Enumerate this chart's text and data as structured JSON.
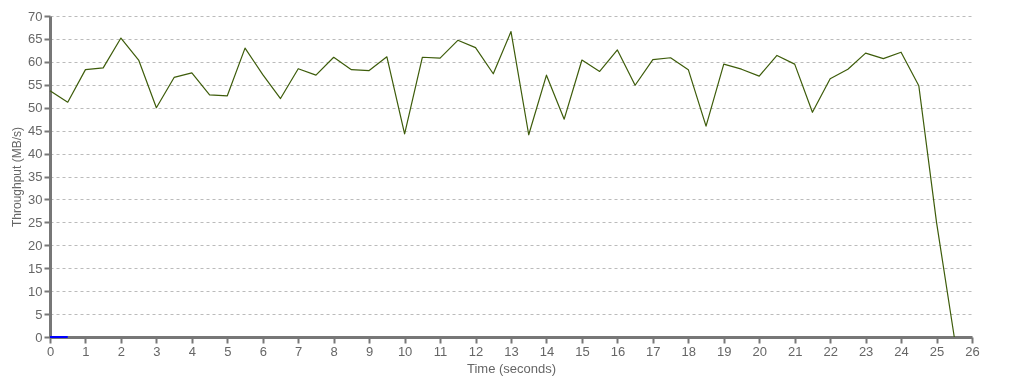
{
  "chart_data": {
    "type": "line",
    "xlabel": "Time (seconds)",
    "ylabel": "Throughput (MB/s)",
    "xlim": [
      0,
      26
    ],
    "xticks": [
      0,
      1,
      2,
      3,
      4,
      5,
      6,
      7,
      8,
      9,
      10,
      11,
      12,
      13,
      14,
      15,
      16,
      17,
      18,
      19,
      20,
      21,
      22,
      23,
      24,
      25,
      26
    ],
    "ylim": [
      0,
      70
    ],
    "yticks": [
      0,
      5,
      10,
      15,
      20,
      25,
      30,
      35,
      40,
      45,
      50,
      55,
      60,
      65,
      70
    ],
    "grid": "y",
    "marker": "none",
    "line_style": "solid",
    "series": [
      {
        "color": "#3d5c0a",
        "x": [
          0,
          0.5,
          1,
          1.5,
          2,
          2.5,
          3,
          3.5,
          4,
          4.5,
          5,
          5.5,
          6,
          6.5,
          7,
          7.5,
          8,
          8.5,
          9,
          9.5,
          10,
          10.5,
          11,
          11.5,
          12,
          12.5,
          13,
          13.5,
          14,
          14.5,
          15,
          15.5,
          16,
          16.5,
          17,
          17.5,
          18,
          18.5,
          19,
          19.5,
          20,
          20.5,
          21,
          21.5,
          22,
          22.5,
          23,
          23.5,
          24,
          24.5,
          25,
          25.5
        ],
        "values": [
          53.7,
          51.2,
          58.3,
          58.7,
          65.2,
          60.4,
          50,
          56.6,
          57.6,
          52.8,
          52.6,
          63,
          57.2,
          52,
          58.5,
          57.1,
          61,
          58.3,
          58.1,
          61.1,
          44.3,
          61,
          60.8,
          64.7,
          63.1,
          57.4,
          66.6,
          44.1,
          57.1,
          47.5,
          60.4,
          57.9,
          62.6,
          54.9,
          60.5,
          60.9,
          58.3,
          46,
          59.5,
          58.4,
          56.9,
          61.4,
          59.5,
          49,
          56.3,
          58.4,
          61.9,
          60.7,
          62.1,
          54.8,
          25,
          0
        ]
      },
      {
        "color": "#0000ff",
        "x": [
          0,
          0.5
        ],
        "values": [
          0,
          0
        ]
      }
    ]
  }
}
